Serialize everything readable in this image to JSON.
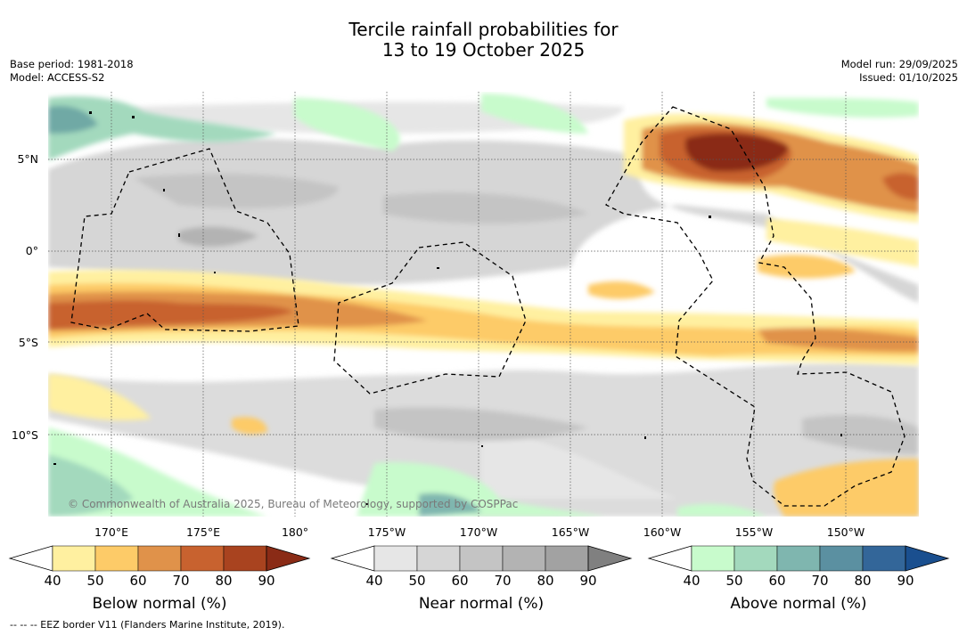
{
  "title": {
    "line1": "Tercile rainfall probabilities for",
    "line2": "13 to 19 October 2025"
  },
  "left_info": {
    "base_period": "Base period: 1981-2018",
    "model": "Model: ACCESS-S2"
  },
  "right_info": {
    "model_run": "Model run: 29/09/2025",
    "issued": "Issued: 01/10/2025"
  },
  "map": {
    "lat_labels": [
      "5°N",
      "0°",
      "5°S",
      "10°S"
    ],
    "lon_labels": [
      "170°E",
      "175°E",
      "180°",
      "175°W",
      "170°W",
      "165°W",
      "160°W",
      "155°W",
      "150°W"
    ],
    "copyright": "© Commonwealth of Australia 2025, Bureau of Meteorology, supported by COSPPac",
    "colors": {
      "land_outline": "#000000",
      "eez_border": "#000000",
      "gridline": "#555555"
    }
  },
  "colorbars": [
    {
      "label": "Below normal (%)",
      "ticks": [
        "40",
        "50",
        "60",
        "70",
        "80",
        "90"
      ],
      "colors": [
        "#ffffff",
        "#fff0a0",
        "#fdcb68",
        "#e0924a",
        "#c8622f",
        "#a9431f",
        "#8a2b16"
      ]
    },
    {
      "label": "Near normal (%)",
      "ticks": [
        "40",
        "50",
        "60",
        "70",
        "80",
        "90"
      ],
      "colors": [
        "#ffffff",
        "#e6e6e6",
        "#d6d6d6",
        "#c4c4c4",
        "#b3b3b3",
        "#a2a2a2",
        "#808080"
      ]
    },
    {
      "label": "Above normal (%)",
      "ticks": [
        "40",
        "50",
        "60",
        "70",
        "80",
        "90"
      ],
      "colors": [
        "#ffffff",
        "#c8fbcc",
        "#a3d9bd",
        "#7fb6af",
        "#5b90a1",
        "#336699",
        "#1a4f8f"
      ]
    }
  ],
  "footnote": "--  --  -- EEZ border V11 (Flanders Marine Institute, 2019)."
}
